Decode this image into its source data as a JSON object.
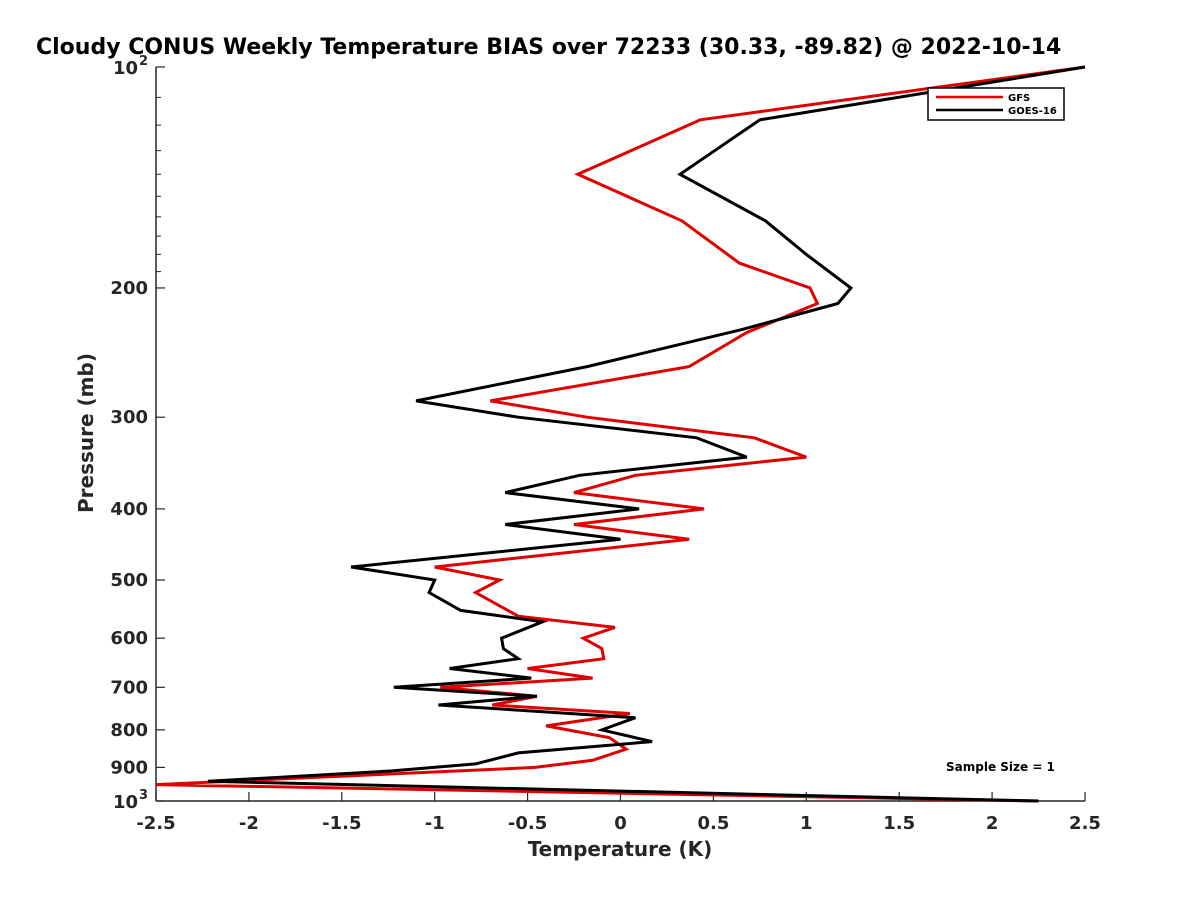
{
  "chart_data": {
    "type": "line",
    "title": "Cloudy CONUS Weekly Temperature BIAS over 72233 (30.33, -89.82) @ 2022-10-14",
    "xlabel": "Temperature (K)",
    "ylabel": "Pressure (mb)",
    "xlim": [
      -2.5,
      2.5
    ],
    "ylim": [
      100,
      1000
    ],
    "yscale": "log",
    "yreverse": true,
    "x_ticks": [
      -2.5,
      -2,
      -1.5,
      -1,
      -0.5,
      0,
      0.5,
      1,
      1.5,
      2,
      2.5
    ],
    "x_tick_labels": [
      "-2.5",
      "-2",
      "-1.5",
      "-1",
      "-0.5",
      "0",
      "0.5",
      "1",
      "1.5",
      "2",
      "2.5"
    ],
    "y_ticks": [
      200,
      300,
      400,
      500,
      600,
      700,
      800,
      900
    ],
    "y_tick_labels": [
      "200",
      "300",
      "400",
      "500",
      "600",
      "700",
      "800",
      "900"
    ],
    "y_end_labels": [
      {
        "p": 100,
        "base": "10",
        "exp": "2"
      },
      {
        "p": 1000,
        "base": "10",
        "exp": "3"
      }
    ],
    "legend_position": "top-right",
    "annotation": "Sample Size = 1",
    "series": [
      {
        "name": "GFS",
        "color": "#e00000",
        "x": [
          2.5,
          0.43,
          -0.23,
          0.33,
          0.64,
          1.02,
          1.06,
          0.68,
          0.37,
          -0.7,
          -0.18,
          0.72,
          1.0,
          0.08,
          -0.25,
          0.45,
          -0.25,
          0.37,
          -1.0,
          -0.65,
          -0.78,
          -0.55,
          -0.03,
          -0.2,
          -0.1,
          -0.09,
          -0.5,
          -0.15,
          -0.97,
          -0.45,
          -0.69,
          0.05,
          -0.4,
          -0.06,
          0.03,
          -0.15,
          -0.46,
          -2.5,
          2.25
        ],
        "y": [
          100,
          118,
          140,
          162,
          185,
          200,
          210,
          230,
          256,
          285,
          300,
          320,
          340,
          360,
          380,
          400,
          420,
          440,
          480,
          500,
          520,
          560,
          580,
          600,
          620,
          640,
          660,
          680,
          700,
          720,
          740,
          760,
          790,
          820,
          850,
          880,
          900,
          950,
          1000
        ]
      },
      {
        "name": "GOES-16",
        "color": "#000000",
        "x": [
          2.5,
          0.75,
          0.32,
          0.78,
          1.0,
          1.24,
          1.17,
          0.65,
          -0.18,
          -1.1,
          -0.55,
          0.41,
          0.68,
          -0.22,
          -0.62,
          0.1,
          -0.62,
          0.0,
          -1.45,
          -1.0,
          -1.03,
          -0.86,
          -0.42,
          -0.64,
          -0.63,
          -0.55,
          -0.92,
          -0.48,
          -1.22,
          -0.45,
          -0.98,
          0.08,
          -0.1,
          0.17,
          -0.55,
          -0.78,
          -1.23,
          -2.22,
          2.25
        ],
        "y": [
          100,
          118,
          140,
          162,
          180,
          200,
          210,
          228,
          256,
          285,
          300,
          320,
          340,
          360,
          380,
          400,
          420,
          440,
          480,
          500,
          520,
          550,
          570,
          600,
          620,
          640,
          660,
          680,
          700,
          720,
          740,
          770,
          800,
          830,
          860,
          890,
          910,
          940,
          1000
        ]
      }
    ]
  }
}
